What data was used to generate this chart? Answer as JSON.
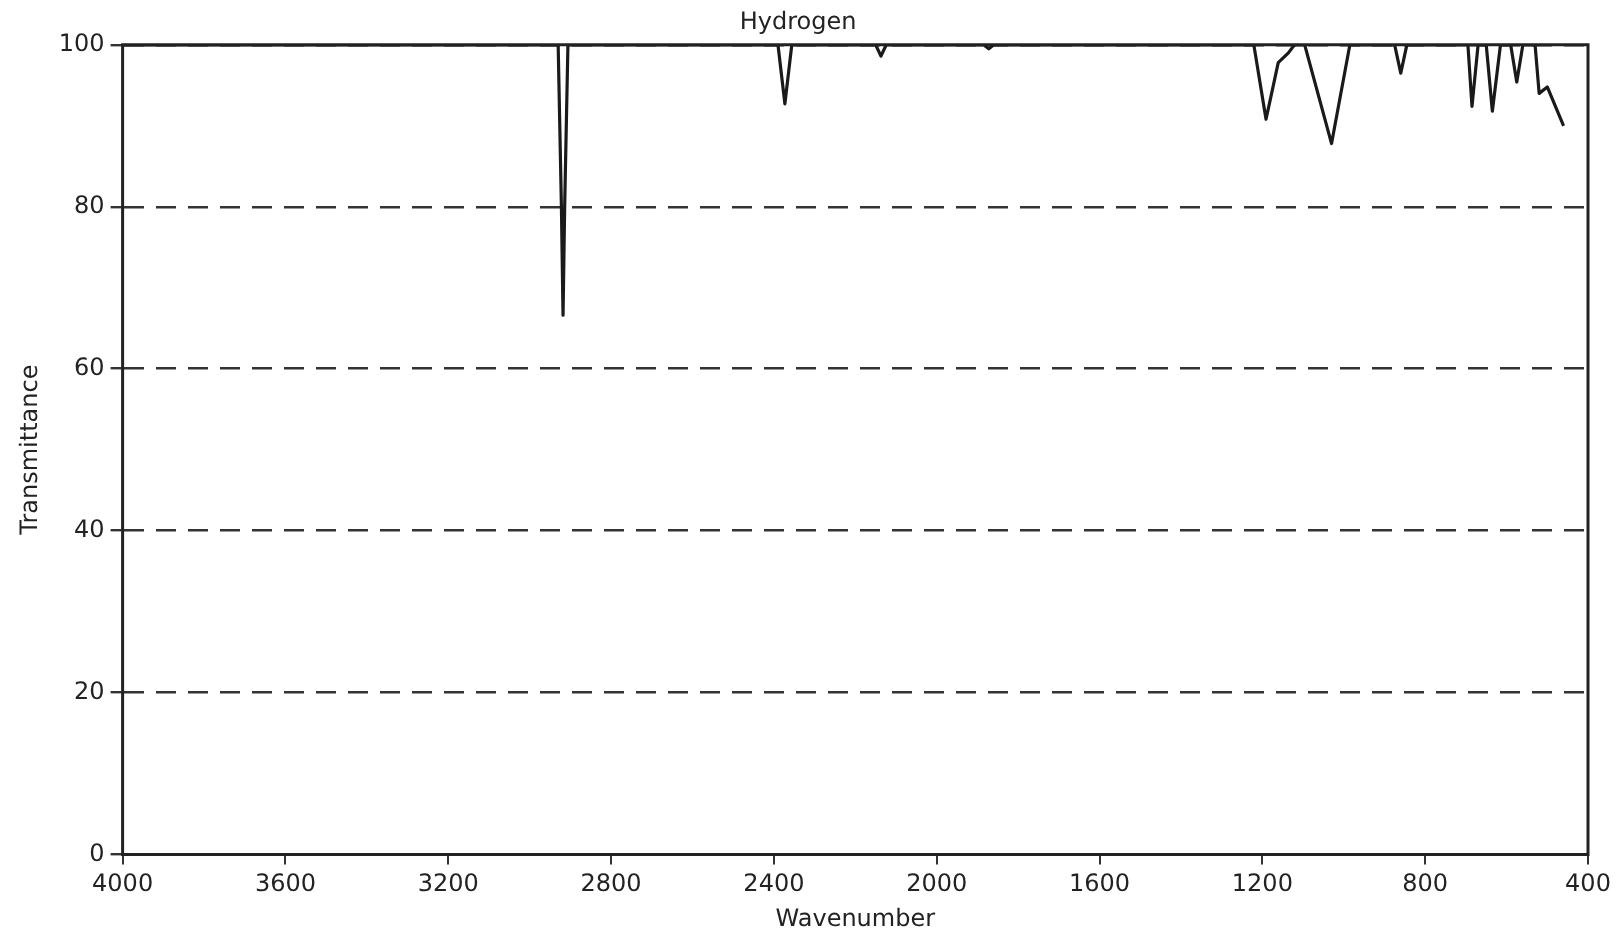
{
  "chart_data": {
    "type": "line",
    "title": "Hydrogen",
    "xlabel": "Wavenumber",
    "ylabel": "Transmittance",
    "xlim": [
      4000,
      400
    ],
    "xticks": [
      4000,
      3600,
      3200,
      2800,
      2400,
      2000,
      1600,
      1200,
      800,
      400
    ],
    "ylim": [
      0,
      100
    ],
    "yticks": [
      0,
      20,
      40,
      60,
      80,
      100
    ],
    "grid": "y",
    "line_style": "solid",
    "marker": "none",
    "legend": false,
    "series": [
      {
        "color": "#1a1a1a",
        "x": [
          4000,
          2930,
          2922,
          2918,
          2914,
          2906,
          2390,
          2373,
          2356,
          2150,
          2137,
          2124,
          1885,
          1872,
          1860,
          1221,
          1191,
          1161,
          1136,
          1121,
          1096,
          1030,
          985,
          875,
          860,
          845,
          695,
          685,
          670,
          650,
          635,
          615,
          590,
          575,
          560,
          530,
          520,
          500,
          460
        ],
        "values": [
          100,
          100,
          80,
          66.6,
          80,
          100,
          100,
          92.7,
          100,
          100,
          98.6,
          100,
          100,
          99.5,
          100,
          100,
          90.8,
          97.8,
          99,
          100,
          100,
          87.8,
          100,
          100,
          96.5,
          100,
          100,
          92.4,
          100,
          100,
          91.8,
          100,
          100,
          95.4,
          100,
          100,
          94,
          94.8,
          90
        ]
      }
    ]
  }
}
